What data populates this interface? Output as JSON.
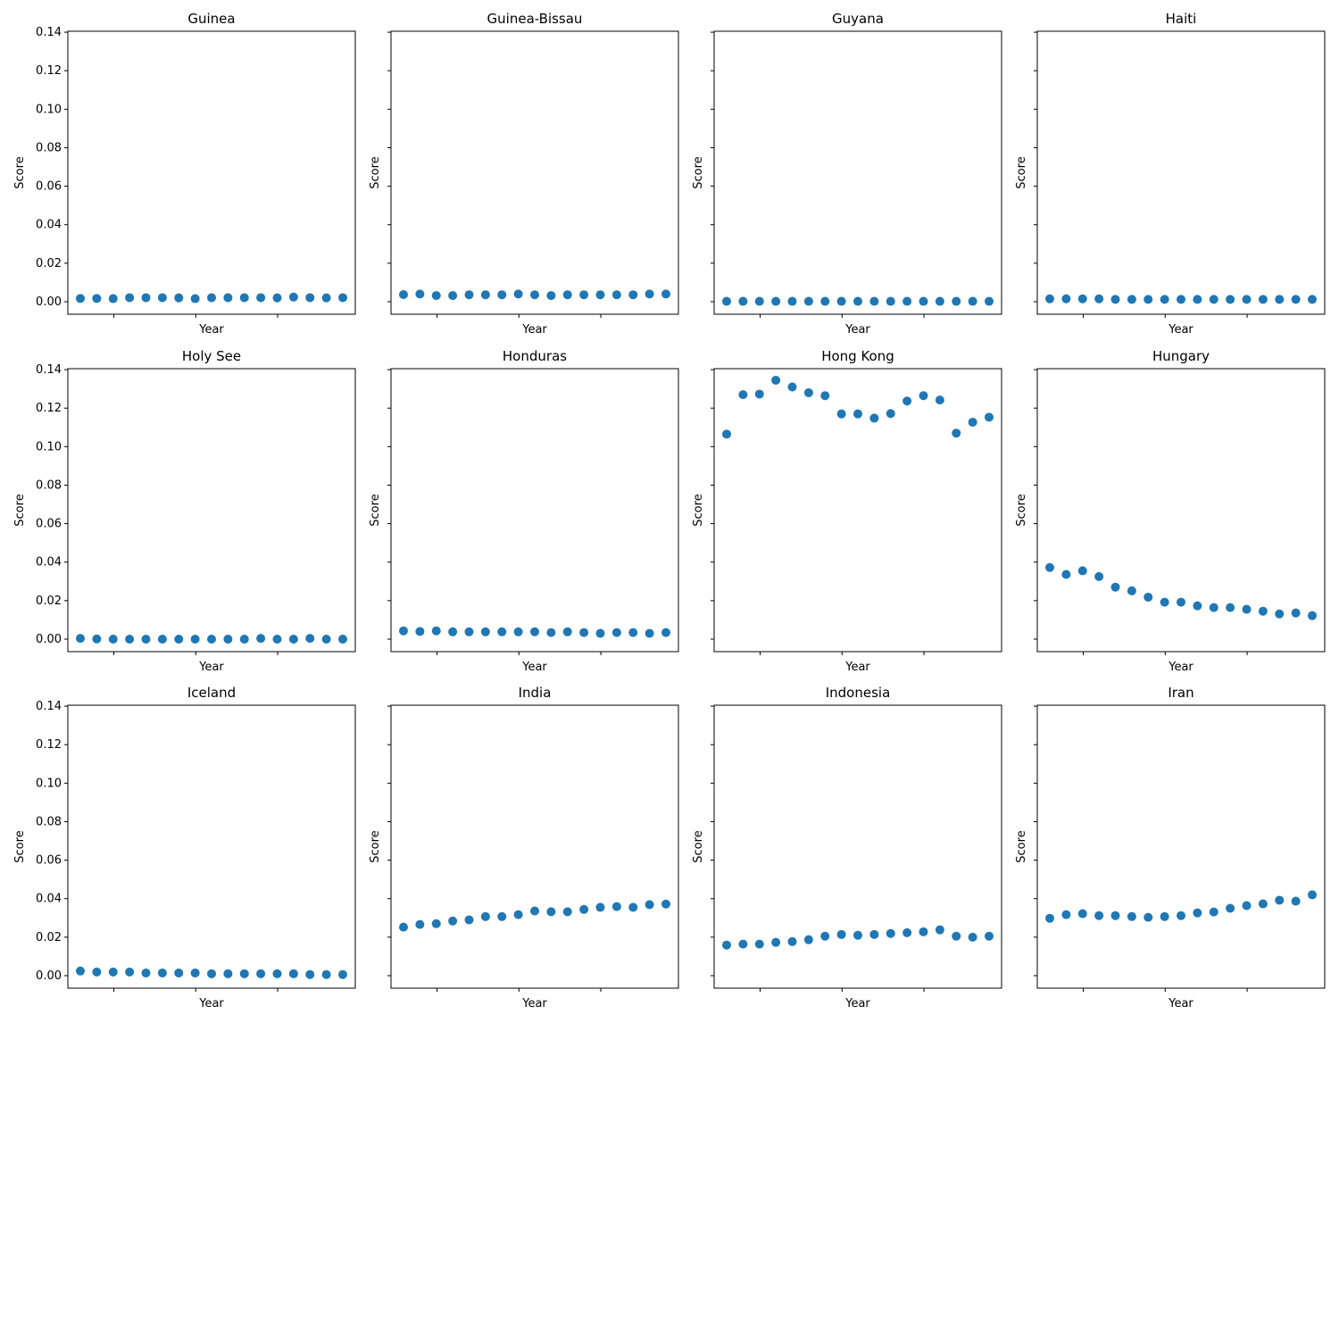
{
  "chart_data": [
    {
      "type": "scatter",
      "title": "Guinea",
      "xlabel": "Year",
      "ylabel": "Score",
      "color": "#1f77b4",
      "values": [
        0.0017,
        0.0017,
        0.0016,
        0.0021,
        0.0021,
        0.0021,
        0.002,
        0.0016,
        0.0021,
        0.0021,
        0.0021,
        0.0021,
        0.002,
        0.0024,
        0.0021,
        0.002,
        0.0021
      ]
    },
    {
      "type": "scatter",
      "title": "Guinea-Bissau",
      "xlabel": "Year",
      "ylabel": "Score",
      "color": "#1f77b4",
      "values": [
        0.0037,
        0.004,
        0.0032,
        0.0032,
        0.0036,
        0.0036,
        0.0036,
        0.004,
        0.0036,
        0.0032,
        0.0036,
        0.0036,
        0.0036,
        0.0036,
        0.0036,
        0.004,
        0.004
      ]
    },
    {
      "type": "scatter",
      "title": "Guyana",
      "xlabel": "Year",
      "ylabel": "Score",
      "color": "#1f77b4",
      "values": [
        0.0002,
        0.0002,
        0.0002,
        0.0002,
        0.0002,
        0.0002,
        0.0002,
        0.0002,
        0.0002,
        0.0002,
        0.0002,
        0.0002,
        0.0002,
        0.0002,
        0.0002,
        0.0002,
        0.0002
      ]
    },
    {
      "type": "scatter",
      "title": "Haiti",
      "xlabel": "Year",
      "ylabel": "Score",
      "color": "#1f77b4",
      "values": [
        0.0015,
        0.0015,
        0.0015,
        0.0015,
        0.0012,
        0.0012,
        0.0012,
        0.0012,
        0.0012,
        0.0012,
        0.0012,
        0.0012,
        0.0012,
        0.0012,
        0.0012,
        0.0012,
        0.0012
      ]
    },
    {
      "type": "scatter",
      "title": "Holy See",
      "xlabel": "Year",
      "ylabel": "Score",
      "color": "#1f77b4",
      "values": [
        0.0004,
        0.0001,
        0.0,
        0.0,
        0.0,
        0.0,
        0.0,
        0.0,
        0.0,
        0.0,
        0.0,
        0.0004,
        0.0,
        0.0,
        0.0004,
        0.0,
        0.0
      ]
    },
    {
      "type": "scatter",
      "title": "Honduras",
      "xlabel": "Year",
      "ylabel": "Score",
      "color": "#1f77b4",
      "values": [
        0.0043,
        0.004,
        0.0043,
        0.0038,
        0.0038,
        0.0038,
        0.0038,
        0.0038,
        0.0038,
        0.0034,
        0.0038,
        0.0034,
        0.003,
        0.0034,
        0.0034,
        0.003,
        0.0034
      ]
    },
    {
      "type": "scatter",
      "title": "Hong Kong",
      "xlabel": "Year",
      "ylabel": "Score",
      "color": "#1f77b4",
      "values": [
        0.1065,
        0.127,
        0.1273,
        0.1345,
        0.131,
        0.128,
        0.1265,
        0.117,
        0.117,
        0.1148,
        0.1172,
        0.1237,
        0.1265,
        0.1242,
        0.107,
        0.1127,
        0.1153
      ]
    },
    {
      "type": "scatter",
      "title": "Hungary",
      "xlabel": "Year",
      "ylabel": "Score",
      "color": "#1f77b4",
      "values": [
        0.0372,
        0.0336,
        0.0355,
        0.0325,
        0.027,
        0.0251,
        0.0218,
        0.0192,
        0.0192,
        0.0173,
        0.0164,
        0.0164,
        0.0155,
        0.0145,
        0.0131,
        0.0136,
        0.0122
      ]
    },
    {
      "type": "scatter",
      "title": "Iceland",
      "xlabel": "Year",
      "ylabel": "Score",
      "color": "#1f77b4",
      "values": [
        0.0024,
        0.0019,
        0.0019,
        0.0019,
        0.0014,
        0.0014,
        0.0014,
        0.0014,
        0.001,
        0.001,
        0.001,
        0.001,
        0.001,
        0.001,
        0.0006,
        0.0006,
        0.0006
      ]
    },
    {
      "type": "scatter",
      "title": "India",
      "xlabel": "Year",
      "ylabel": "Score",
      "color": "#1f77b4",
      "values": [
        0.0252,
        0.0266,
        0.027,
        0.0284,
        0.029,
        0.0307,
        0.0307,
        0.0317,
        0.0336,
        0.0332,
        0.0332,
        0.0344,
        0.0355,
        0.0359,
        0.0355,
        0.0369,
        0.0372
      ]
    },
    {
      "type": "scatter",
      "title": "Indonesia",
      "xlabel": "Year",
      "ylabel": "Score",
      "color": "#1f77b4",
      "values": [
        0.0159,
        0.0164,
        0.0164,
        0.0173,
        0.0177,
        0.0187,
        0.0205,
        0.0214,
        0.021,
        0.0214,
        0.0219,
        0.0223,
        0.0228,
        0.0238,
        0.0205,
        0.02,
        0.0205
      ]
    },
    {
      "type": "scatter",
      "title": "Iran",
      "xlabel": "Year",
      "ylabel": "Score",
      "color": "#1f77b4",
      "values": [
        0.0298,
        0.0317,
        0.0322,
        0.0312,
        0.0312,
        0.0307,
        0.0303,
        0.0307,
        0.0312,
        0.0326,
        0.0331,
        0.035,
        0.0364,
        0.0373,
        0.0392,
        0.0387,
        0.042
      ]
    }
  ],
  "shared_axes": {
    "ylim": [
      -0.0065,
      0.1405
    ],
    "yticks": [
      "0.00",
      "0.02",
      "0.04",
      "0.06",
      "0.08",
      "0.10",
      "0.12",
      "0.14"
    ],
    "xtick_count": 3
  }
}
